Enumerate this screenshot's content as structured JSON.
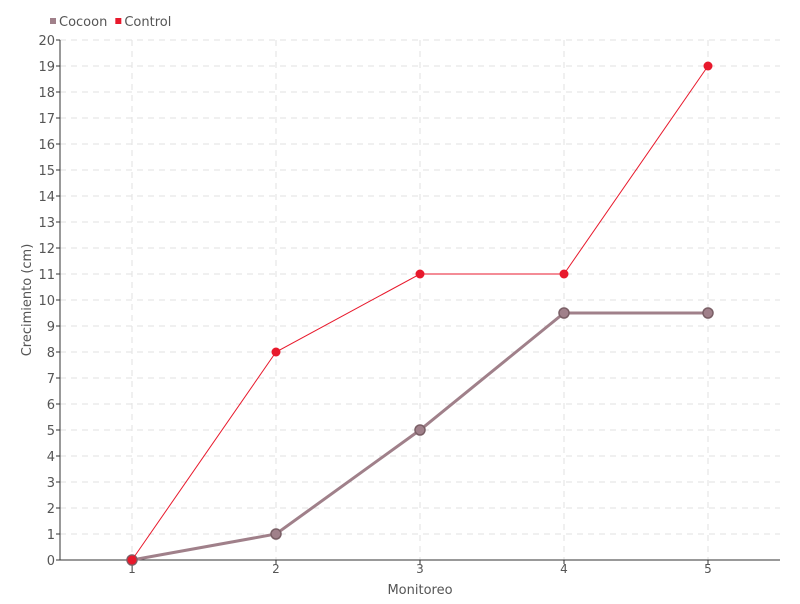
{
  "chart_data": {
    "type": "line",
    "title": "",
    "xlabel": "Monitoreo",
    "ylabel": "Crecimiento (cm)",
    "categories": [
      "1",
      "2",
      "3",
      "4",
      "5"
    ],
    "ylim": [
      0,
      20
    ],
    "yticks": [
      0,
      1,
      2,
      3,
      4,
      5,
      6,
      7,
      8,
      9,
      10,
      11,
      12,
      13,
      14,
      15,
      16,
      17,
      18,
      19,
      20
    ],
    "grid": true,
    "legend_position": "top-left",
    "series": [
      {
        "name": "Cocoon",
        "values": [
          0,
          1,
          5,
          9.5,
          9.5
        ],
        "color": "#a0808a"
      },
      {
        "name": "Control",
        "values": [
          0,
          8,
          11,
          11,
          19
        ],
        "color": "#e8192c"
      }
    ]
  }
}
